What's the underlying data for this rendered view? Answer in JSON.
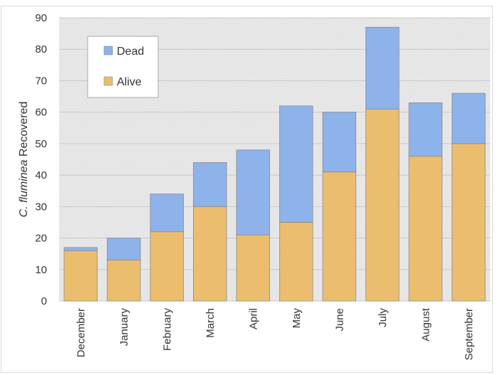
{
  "chart_data": {
    "type": "bar",
    "stacked": true,
    "title": "",
    "xlabel": "",
    "ylabel": {
      "italic": "C. fluminea",
      "rest": "Recovered"
    },
    "ylim": [
      0,
      90
    ],
    "yticks": [
      0,
      10,
      20,
      30,
      40,
      50,
      60,
      70,
      80,
      90
    ],
    "grid": true,
    "legend_position": "top-left",
    "categories": [
      "December",
      "January",
      "February",
      "March",
      "April",
      "May",
      "June",
      "July",
      "August",
      "September"
    ],
    "series": [
      {
        "name": "Alive",
        "color": "#EBBD6E",
        "values": [
          16,
          13,
          22,
          30,
          21,
          25,
          41,
          61,
          46,
          50
        ]
      },
      {
        "name": "Dead",
        "color": "#8EB2EA",
        "values": [
          1,
          7,
          12,
          14,
          27,
          37,
          19,
          26,
          17,
          16
        ]
      }
    ],
    "legend_order": [
      "Dead",
      "Alive"
    ]
  }
}
